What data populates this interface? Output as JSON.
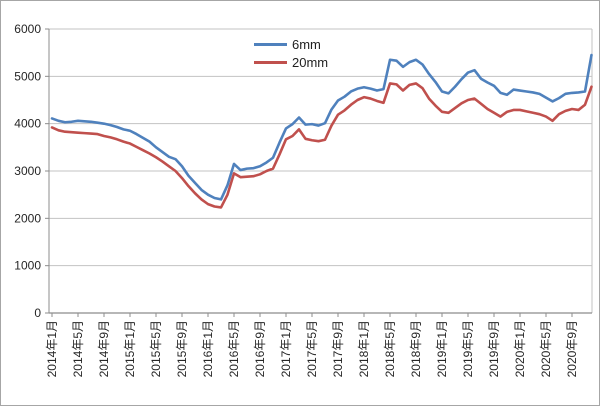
{
  "chart_data": {
    "type": "line",
    "title": "",
    "xlabel": "",
    "ylabel": "",
    "ylim": [
      0,
      6000
    ],
    "y_ticks": [
      0,
      1000,
      2000,
      3000,
      4000,
      5000,
      6000
    ],
    "grid": "horizontal-only",
    "legend_position": "inside-top-center",
    "x_range": {
      "start": "2014-01",
      "end": "2020-12",
      "step": "month"
    },
    "x_tick_every_n_months": 4,
    "x_tick_labels": [
      "2014年1月",
      "2014年5月",
      "2014年9月",
      "2015年1月",
      "2015年5月",
      "2015年9月",
      "2016年1月",
      "2016年5月",
      "2016年9月",
      "2017年1月",
      "2017年5月",
      "2017年9月",
      "2018年1月",
      "2018年5月",
      "2018年9月",
      "2019年1月",
      "2019年5月",
      "2019年9月",
      "2020年1月",
      "2020年5月",
      "2020年9月"
    ],
    "series": [
      {
        "name": "6mm",
        "color": "#4F81BD",
        "values": [
          4110,
          4060,
          4030,
          4040,
          4060,
          4050,
          4040,
          4020,
          4000,
          3970,
          3930,
          3880,
          3850,
          3780,
          3700,
          3620,
          3500,
          3400,
          3300,
          3250,
          3100,
          2900,
          2750,
          2600,
          2500,
          2430,
          2400,
          2700,
          3150,
          3020,
          3050,
          3060,
          3100,
          3180,
          3280,
          3600,
          3900,
          3990,
          4130,
          3980,
          3990,
          3960,
          4010,
          4300,
          4490,
          4570,
          4680,
          4740,
          4770,
          4740,
          4700,
          4730,
          5350,
          5330,
          5200,
          5300,
          5350,
          5250,
          5050,
          4880,
          4680,
          4640,
          4780,
          4940,
          5080,
          5130,
          4950,
          4870,
          4800,
          4650,
          4610,
          4720,
          4700,
          4680,
          4660,
          4630,
          4550,
          4470,
          4540,
          4630,
          4650,
          4660,
          4680,
          5450
        ]
      },
      {
        "name": "20mm",
        "color": "#C0504D",
        "values": [
          3920,
          3860,
          3830,
          3820,
          3810,
          3800,
          3790,
          3780,
          3740,
          3710,
          3670,
          3620,
          3580,
          3510,
          3440,
          3370,
          3290,
          3200,
          3100,
          3000,
          2850,
          2680,
          2530,
          2400,
          2300,
          2250,
          2230,
          2500,
          2950,
          2870,
          2880,
          2890,
          2930,
          3000,
          3050,
          3350,
          3670,
          3740,
          3880,
          3680,
          3650,
          3630,
          3660,
          3960,
          4190,
          4280,
          4400,
          4500,
          4560,
          4530,
          4480,
          4440,
          4850,
          4830,
          4700,
          4820,
          4850,
          4750,
          4530,
          4380,
          4250,
          4230,
          4330,
          4430,
          4500,
          4530,
          4420,
          4310,
          4230,
          4150,
          4250,
          4290,
          4290,
          4260,
          4230,
          4200,
          4150,
          4060,
          4200,
          4270,
          4310,
          4290,
          4400,
          4780
        ]
      }
    ]
  },
  "legend": {
    "items": [
      {
        "label": "6mm"
      },
      {
        "label": "20mm"
      }
    ]
  },
  "colors": {
    "series_6mm": "#4F81BD",
    "series_20mm": "#C0504D",
    "gridline": "#c3c3c3",
    "axis": "#8c8c8c",
    "tick_text": "#262626",
    "figure_border": "#a6a6a6",
    "background": "#ffffff"
  }
}
